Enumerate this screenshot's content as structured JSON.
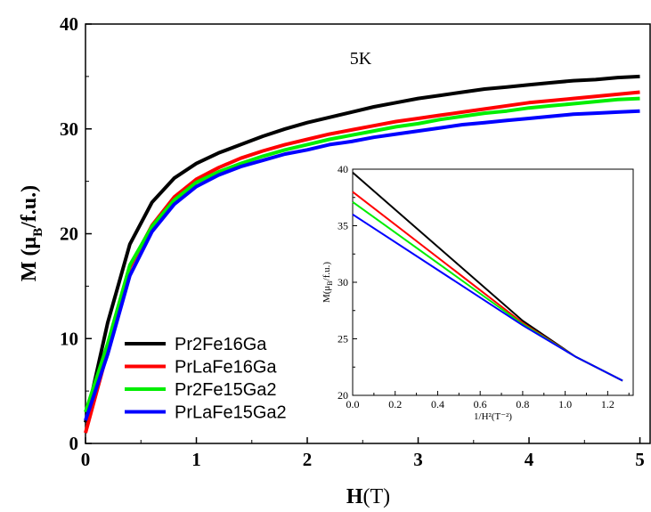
{
  "chart_data": [
    {
      "type": "line",
      "annotation": "5K",
      "xlabel_main": "H",
      "xlabel_unit": "(T)",
      "ylabel_main": "M (μ",
      "ylabel_sub": "B",
      "ylabel_tail": "/f.u.)",
      "xlim": [
        0,
        5.1
      ],
      "ylim": [
        0,
        40
      ],
      "xticks": [
        0,
        1,
        2,
        3,
        4,
        5
      ],
      "yticks": [
        0,
        10,
        20,
        30,
        40
      ],
      "legend_position": "bottom-left",
      "series": [
        {
          "name": "Pr2Fe16Ga",
          "color": "#000000",
          "x": [
            0,
            0.2,
            0.4,
            0.6,
            0.8,
            1.0,
            1.2,
            1.4,
            1.6,
            1.8,
            2.0,
            2.2,
            2.4,
            2.6,
            2.8,
            3.0,
            3.2,
            3.4,
            3.6,
            3.8,
            4.0,
            4.2,
            4.4,
            4.6,
            4.8,
            5.0
          ],
          "y": [
            2.0,
            11.5,
            19.0,
            23.0,
            25.3,
            26.7,
            27.7,
            28.5,
            29.3,
            30.0,
            30.6,
            31.1,
            31.6,
            32.1,
            32.5,
            32.9,
            33.2,
            33.5,
            33.8,
            34.0,
            34.2,
            34.4,
            34.6,
            34.7,
            34.9,
            35.0
          ]
        },
        {
          "name": "PrLaFe16Ga",
          "color": "#ff0000",
          "x": [
            0,
            0.2,
            0.4,
            0.6,
            0.8,
            1.0,
            1.2,
            1.4,
            1.6,
            1.8,
            2.0,
            2.2,
            2.4,
            2.6,
            2.8,
            3.0,
            3.2,
            3.4,
            3.6,
            3.8,
            4.0,
            4.2,
            4.4,
            4.6,
            4.8,
            5.0
          ],
          "y": [
            1.0,
            8.8,
            16.8,
            20.8,
            23.5,
            25.2,
            26.3,
            27.2,
            27.9,
            28.5,
            29.0,
            29.5,
            29.9,
            30.3,
            30.7,
            31.0,
            31.3,
            31.6,
            31.9,
            32.2,
            32.5,
            32.7,
            32.9,
            33.1,
            33.3,
            33.5
          ]
        },
        {
          "name": "Pr2Fe15Ga2",
          "color": "#00ee00",
          "x": [
            0,
            0.2,
            0.4,
            0.6,
            0.8,
            1.0,
            1.2,
            1.4,
            1.6,
            1.8,
            2.0,
            2.2,
            2.4,
            2.6,
            2.8,
            3.0,
            3.2,
            3.4,
            3.6,
            3.8,
            4.0,
            4.2,
            4.4,
            4.6,
            4.8,
            5.0
          ],
          "y": [
            3.0,
            9.5,
            17.0,
            20.7,
            23.2,
            24.9,
            25.9,
            26.7,
            27.4,
            28.0,
            28.5,
            29.0,
            29.4,
            29.8,
            30.2,
            30.5,
            30.9,
            31.2,
            31.5,
            31.7,
            32.0,
            32.2,
            32.4,
            32.6,
            32.8,
            32.9
          ]
        },
        {
          "name": "PrLaFe15Ga2",
          "color": "#0000ff",
          "x": [
            0,
            0.2,
            0.4,
            0.6,
            0.8,
            1.0,
            1.2,
            1.4,
            1.6,
            1.8,
            2.0,
            2.2,
            2.4,
            2.6,
            2.8,
            3.0,
            3.2,
            3.4,
            3.6,
            3.8,
            4.0,
            4.2,
            4.4,
            4.6,
            4.8,
            5.0
          ],
          "y": [
            2.2,
            8.5,
            16.0,
            20.2,
            22.8,
            24.5,
            25.6,
            26.4,
            27.0,
            27.6,
            28.0,
            28.5,
            28.8,
            29.2,
            29.5,
            29.8,
            30.1,
            30.4,
            30.6,
            30.8,
            31.0,
            31.2,
            31.4,
            31.5,
            31.6,
            31.7
          ]
        }
      ]
    },
    {
      "type": "line",
      "xlabel": "1/H²(T⁻²)",
      "ylabel_main": "M(μ",
      "ylabel_sub": "B",
      "ylabel_tail": "/f.u.)",
      "xlim": [
        0,
        1.32
      ],
      "ylim": [
        20,
        40
      ],
      "xticks": [
        "0.0",
        "0.2",
        "0.4",
        "0.6",
        "0.8",
        "1.0",
        "1.2"
      ],
      "yticks": [
        20,
        25,
        30,
        35,
        40
      ],
      "series": [
        {
          "color": "#000000",
          "x": [
            0,
            0.8,
            1.05,
            1.27
          ],
          "y": [
            39.7,
            26.6,
            23.4,
            21.3
          ]
        },
        {
          "color": "#ff0000",
          "x": [
            0,
            0.8,
            1.05,
            1.27
          ],
          "y": [
            38.0,
            26.4,
            23.4,
            21.3
          ]
        },
        {
          "color": "#00ee00",
          "x": [
            0,
            0.8,
            1.05,
            1.27
          ],
          "y": [
            37.1,
            26.3,
            23.4,
            21.3
          ]
        },
        {
          "color": "#0000ff",
          "x": [
            0,
            0.8,
            1.05,
            1.27
          ],
          "y": [
            36.0,
            26.2,
            23.4,
            21.3
          ]
        }
      ]
    }
  ]
}
